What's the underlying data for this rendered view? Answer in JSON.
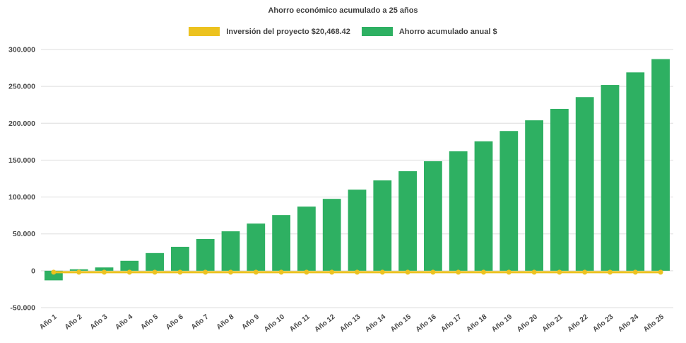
{
  "chart_data": {
    "type": "bar",
    "title": "Ahorro económico acumulado a 25 años",
    "categories": [
      "Año 1",
      "Año 2",
      "Año 3",
      "Año 4",
      "Año 5",
      "Año 6",
      "Año 7",
      "Año 8",
      "Año 9",
      "Año 10",
      "Año 11",
      "Año 12",
      "Año 13",
      "Año 14",
      "Año 15",
      "Año 16",
      "Año 17",
      "Año 18",
      "Año 19",
      "Año 20",
      "Año 21",
      "Año 22",
      "Año 23",
      "Año 24",
      "Año 25"
    ],
    "series": [
      {
        "name": "Inversión del proyecto $20,468.42",
        "type": "line",
        "color": "#ecc21f",
        "values": [
          0,
          0,
          0,
          0,
          0,
          0,
          0,
          0,
          0,
          0,
          0,
          0,
          0,
          0,
          0,
          0,
          0,
          0,
          0,
          0,
          0,
          0,
          0,
          0,
          0
        ]
      },
      {
        "name": "Ahorro acumulado anual $",
        "type": "bar",
        "color": "#2eb062",
        "values": [
          -13000,
          2000,
          4500,
          13500,
          24000,
          32500,
          43000,
          53500,
          64000,
          75500,
          87000,
          97500,
          110000,
          122500,
          135000,
          148500,
          162000,
          175500,
          189500,
          204000,
          219500,
          235500,
          252000,
          269000,
          287000
        ]
      }
    ],
    "ylim": [
      -50000,
      300000
    ],
    "ytick_step": 50000,
    "ytick_labels": [
      "-50.000",
      "0",
      "50.000",
      "100.000",
      "150.000",
      "200.000",
      "250.000",
      "300.000"
    ],
    "grid": true,
    "legend_position": "top",
    "colors": {
      "background": "#ffffff",
      "grid_line": "#dedede",
      "text": "#474747"
    }
  }
}
